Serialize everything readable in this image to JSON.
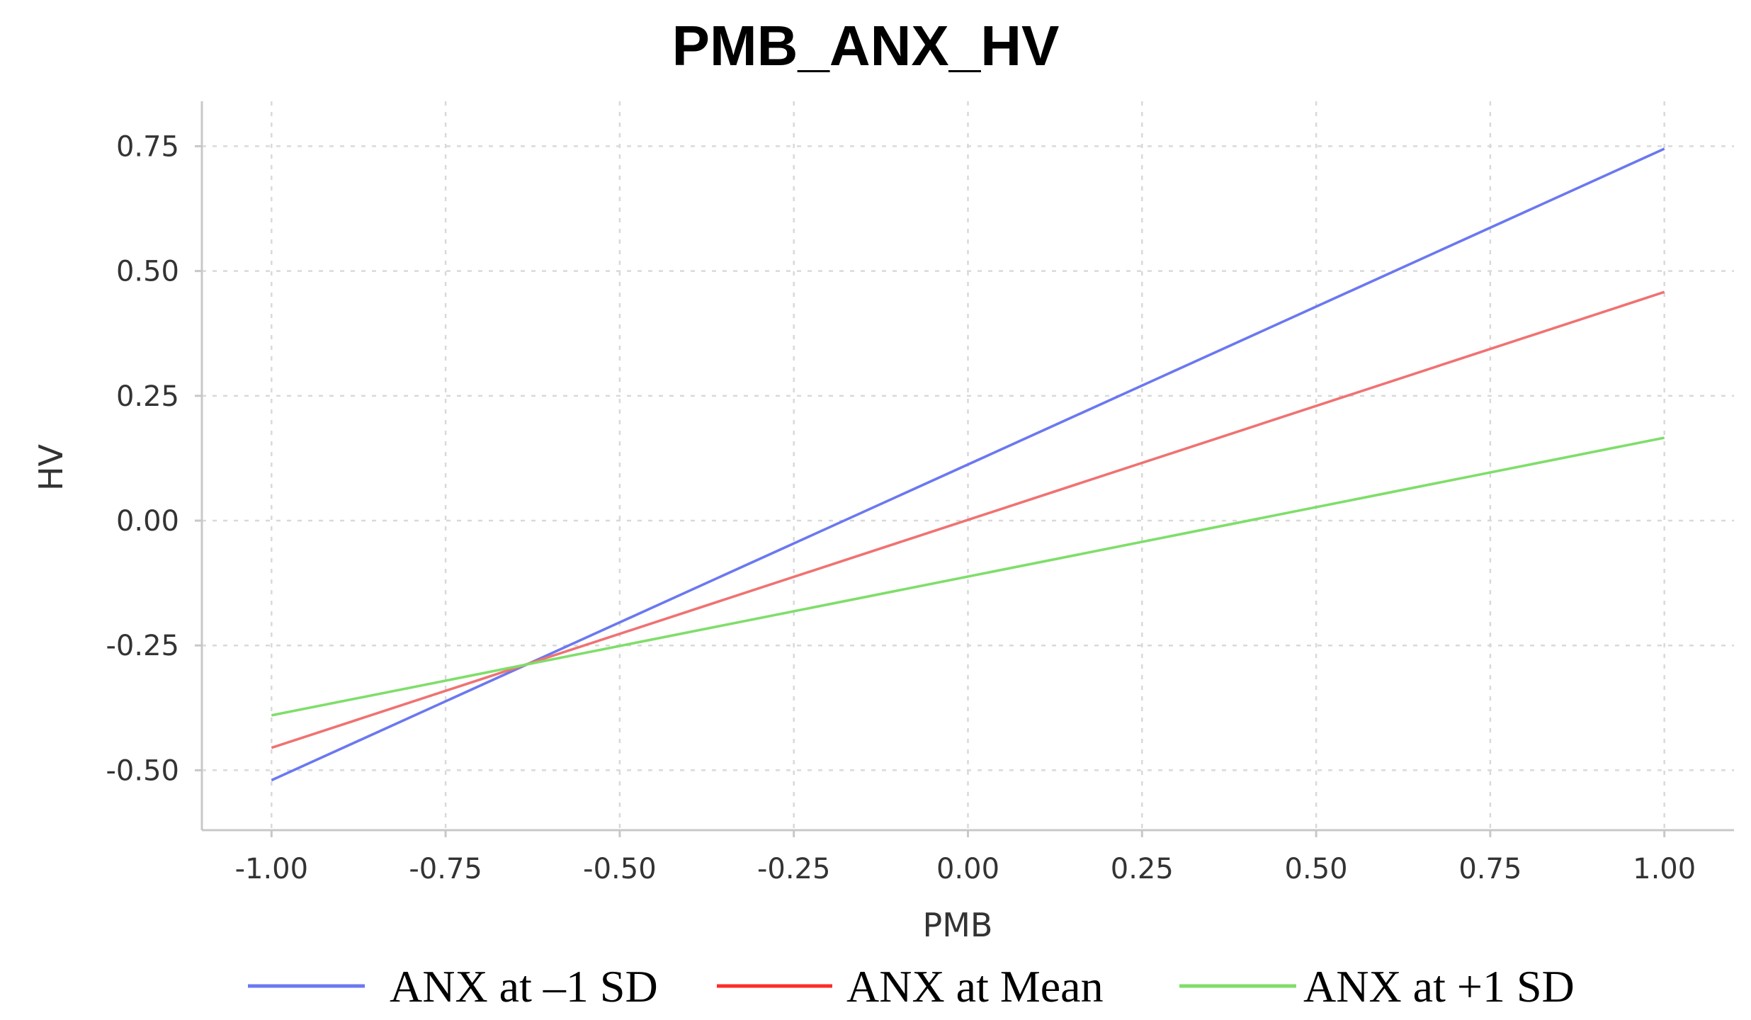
{
  "chart_data": {
    "type": "line",
    "title": "PMB_ANX_HV",
    "xlabel": "PMB",
    "ylabel": "HV",
    "x_ticks": [
      "-1.00",
      "-0.75",
      "-0.50",
      "-0.25",
      "0.00",
      "0.25",
      "0.50",
      "0.75",
      "1.00"
    ],
    "y_ticks": [
      "0.75",
      "0.50",
      "0.25",
      "0.00",
      "-0.25",
      "-0.50"
    ],
    "x_tick_values": [
      -1.0,
      -0.75,
      -0.5,
      -0.25,
      0.0,
      0.25,
      0.5,
      0.75,
      1.0
    ],
    "y_tick_values": [
      0.75,
      0.5,
      0.25,
      0.0,
      -0.25,
      -0.5
    ],
    "xlim": [
      -1.1,
      1.1
    ],
    "ylim": [
      -0.62,
      0.84
    ],
    "grid": true,
    "legend_position": "bottom",
    "series": [
      {
        "name": "ANX at –1 SD",
        "color": "#6b78f0",
        "x": [
          -1.0,
          1.0
        ],
        "y": [
          -0.52,
          0.745
        ]
      },
      {
        "name": "ANX at Mean",
        "color": "#f07272",
        "x": [
          -1.0,
          1.0
        ],
        "y": [
          -0.455,
          0.458
        ]
      },
      {
        "name": "ANX at +1 SD",
        "color": "#7fde6a",
        "x": [
          -1.0,
          1.0
        ],
        "y": [
          -0.39,
          0.166
        ]
      }
    ],
    "legend_colors": [
      "#6b78f0",
      "#ff2a2a",
      "#7fde6a"
    ]
  }
}
